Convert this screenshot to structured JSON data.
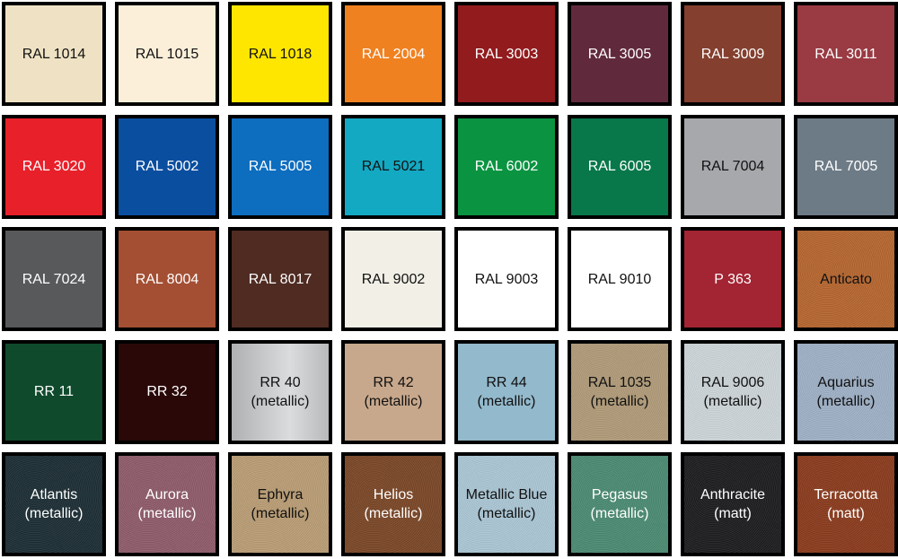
{
  "swatches": [
    {
      "l1": "RAL 1014",
      "l2": "",
      "color": "#efe2c4",
      "text": "#111"
    },
    {
      "l1": "RAL 1015",
      "l2": "",
      "color": "#fbefd9",
      "text": "#111"
    },
    {
      "l1": "RAL  1018",
      "l2": "",
      "color": "#ffe600",
      "text": "#111"
    },
    {
      "l1": "RAL 2004",
      "l2": "",
      "color": "#f08120",
      "text": "#fff"
    },
    {
      "l1": "RAL 3003",
      "l2": "",
      "color": "#921b1e",
      "text": "#fff"
    },
    {
      "l1": "RAL 3005",
      "l2": "",
      "color": "#612a3c",
      "text": "#fff"
    },
    {
      "l1": "RAL 3009",
      "l2": "",
      "color": "#843f2f",
      "text": "#fff"
    },
    {
      "l1": "RAL  3011",
      "l2": "",
      "color": "#9a3a42",
      "text": "#fff"
    },
    {
      "l1": "RAL  3020",
      "l2": "",
      "color": "#e8202a",
      "text": "#fff"
    },
    {
      "l1": "RAL 5002",
      "l2": "",
      "color": "#0a4ea0",
      "text": "#fff"
    },
    {
      "l1": "RAL 5005",
      "l2": "",
      "color": "#0d6dbf",
      "text": "#fff"
    },
    {
      "l1": "RAL 5021",
      "l2": "",
      "color": "#13a9c3",
      "text": "#111"
    },
    {
      "l1": "RAL 6002",
      "l2": "",
      "color": "#0a9441",
      "text": "#fff"
    },
    {
      "l1": "RAL 6005",
      "l2": "",
      "color": "#08774a",
      "text": "#fff"
    },
    {
      "l1": "RAL 7004",
      "l2": "",
      "color": "#a6a8ab",
      "text": "#111"
    },
    {
      "l1": "RAL 7005",
      "l2": "",
      "color": "#6d7b86",
      "text": "#fff"
    },
    {
      "l1": "RAL 7024",
      "l2": "",
      "color": "#58595b",
      "text": "#fff"
    },
    {
      "l1": "RAL 8004",
      "l2": "",
      "color": "#a44f33",
      "text": "#fff"
    },
    {
      "l1": "RAL 8017",
      "l2": "",
      "color": "#4f2b22",
      "text": "#fff"
    },
    {
      "l1": "RAL 9002",
      "l2": "",
      "color": "#f1efe6",
      "text": "#111"
    },
    {
      "l1": "RAL 9003",
      "l2": "",
      "color": "#ffffff",
      "text": "#111"
    },
    {
      "l1": "RAL 9010",
      "l2": "",
      "color": "#ffffff",
      "text": "#111"
    },
    {
      "l1": "P 363",
      "l2": "",
      "color": "#a32433",
      "text": "#fff"
    },
    {
      "l1": "Anticato",
      "l2": "",
      "color": "#b5652e",
      "text": "#111",
      "tex": true
    },
    {
      "l1": "RR 11",
      "l2": "",
      "color": "#0f4a2c",
      "text": "#fff"
    },
    {
      "l1": "RR 32",
      "l2": "",
      "color": "#2a0808",
      "text": "#fff"
    },
    {
      "l1": "RR 40",
      "l2": "(metallic)",
      "color": "#c7c9cb",
      "text": "#111",
      "grad": true
    },
    {
      "l1": "RR 42",
      "l2": "(metallic)",
      "color": "#c8a88c",
      "text": "#111"
    },
    {
      "l1": "RR 44",
      "l2": "(metallic)",
      "color": "#93b9cc",
      "text": "#111"
    },
    {
      "l1": "RAL 1035",
      "l2": "(metallic)",
      "color": "#b09a78",
      "text": "#111",
      "tex": true
    },
    {
      "l1": "RAL 9006",
      "l2": "(metallic)",
      "color": "#ccd5d8",
      "text": "#111",
      "tex": true
    },
    {
      "l1": "Aquarius",
      "l2": "(metallic)",
      "color": "#9eb0c6",
      "text": "#111",
      "tex": true
    },
    {
      "l1": "Atlantis",
      "l2": "(metallic)",
      "color": "#1b2d33",
      "text": "#fff",
      "tex": true
    },
    {
      "l1": "Aurora",
      "l2": "(metallic)",
      "color": "#8e5a6a",
      "text": "#fff",
      "tex": true
    },
    {
      "l1": "Ephyra",
      "l2": "(metallic)",
      "color": "#b99c74",
      "text": "#111",
      "tex": true
    },
    {
      "l1": "Helios",
      "l2": "(metallic)",
      "color": "#7a4626",
      "text": "#fff",
      "tex": true
    },
    {
      "l1": "Metallic Blue",
      "l2": "(metallic)",
      "color": "#aac6d4",
      "text": "#111",
      "tex": true
    },
    {
      "l1": "Pegasus",
      "l2": "(metallic)",
      "color": "#4a8a72",
      "text": "#fff",
      "tex": true
    },
    {
      "l1": "Anthracite",
      "l2": "(matt)",
      "color": "#1c1b1e",
      "text": "#fff",
      "tex": true
    },
    {
      "l1": "Terracotta",
      "l2": "(matt)",
      "color": "#8a3a1c",
      "text": "#fff",
      "tex": true
    }
  ]
}
